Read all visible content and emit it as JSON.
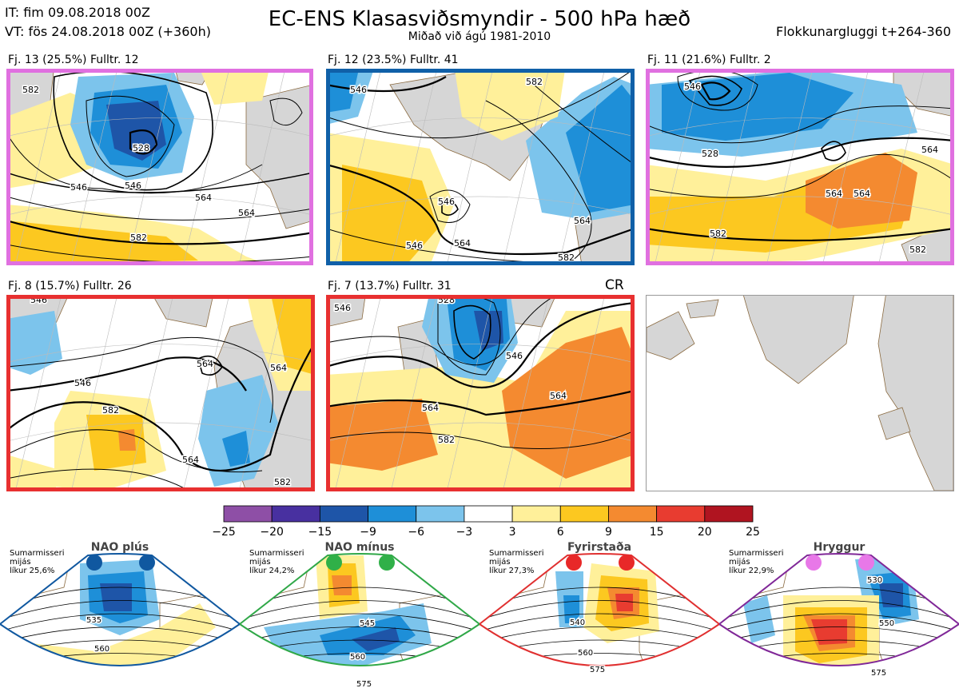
{
  "header": {
    "it_line": "IT: fim 09.08.2018 00Z",
    "vt_line": "VT: fös 24.08.2018 00Z  (+360h)",
    "title": "EC-ENS Klasasviðsmyndir - 500 hPa hæð",
    "subtitle": "Miðað við ágú 1981-2010",
    "window_label": "Flokkunargluggi t+264-360"
  },
  "cr_label": "CR",
  "chart_data": [
    {
      "type": "heatmap",
      "panel": "cluster-1",
      "label": "Fj. 13 (25.5%)   Fulltr. 12",
      "members": 13,
      "probability_pct": 25.5,
      "representative": 12,
      "frame_color": "#e070e0",
      "contour_labels": [
        "546",
        "528",
        "546",
        "564",
        "564",
        "582",
        "582"
      ]
    },
    {
      "type": "heatmap",
      "panel": "cluster-2",
      "label": "Fj. 12 (23.5%)   Fulltr. 41",
      "members": 12,
      "probability_pct": 23.5,
      "representative": 41,
      "frame_color": "#1060a8",
      "contour_labels": [
        "546",
        "546",
        "546",
        "564",
        "564",
        "582",
        "582"
      ]
    },
    {
      "type": "heatmap",
      "panel": "cluster-3",
      "label": "Fj. 11 (21.6%)   Fulltr. 2",
      "members": 11,
      "probability_pct": 21.6,
      "representative": 2,
      "frame_color": "#e070e0",
      "contour_labels": [
        "546",
        "528",
        "564",
        "582",
        "564",
        "564",
        "582"
      ]
    },
    {
      "type": "heatmap",
      "panel": "cluster-4",
      "label": "Fj. 8 (15.7%)   Fulltr. 26",
      "members": 8,
      "probability_pct": 15.7,
      "representative": 26,
      "frame_color": "#e83030",
      "contour_labels": [
        "546",
        "546",
        "564",
        "582",
        "564",
        "564",
        "582"
      ]
    },
    {
      "type": "heatmap",
      "panel": "cluster-5",
      "label": "Fj. 7 (13.7%)   Fulltr. 31",
      "members": 7,
      "probability_pct": 13.7,
      "representative": 31,
      "frame_color": "#e83030",
      "contour_labels": [
        "528",
        "546",
        "564",
        "564",
        "582",
        "546"
      ]
    },
    {
      "type": "table",
      "panel": "colorbar",
      "ticks": [
        "−25",
        "−20",
        "−15",
        "−9",
        "−6",
        "−3",
        "3",
        "6",
        "9",
        "15",
        "20",
        "25"
      ],
      "colors": [
        "#8e4fa6",
        "#4830a0",
        "#1e55a8",
        "#1e8fd8",
        "#7cc4ec",
        "#ffffff",
        "#fff09a",
        "#fcc820",
        "#f48a30",
        "#e83c30",
        "#b01420"
      ]
    },
    {
      "type": "heatmap",
      "panel": "regime-1",
      "name": "NAO plús",
      "info": [
        "Sumarmisseri",
        "mijás",
        "líkur 25,6%"
      ],
      "probability_pct": 25.6,
      "frame_color": "#1058a0",
      "dot_color": "#1058a0",
      "contour_labels": [
        "535",
        "560"
      ]
    },
    {
      "type": "heatmap",
      "panel": "regime-2",
      "name": "NAO mínus",
      "info": [
        "Sumarmisseri",
        "mijás",
        "líkur 24,2%"
      ],
      "probability_pct": 24.2,
      "frame_color": "#30a848",
      "dot_color": "#30b048",
      "contour_labels": [
        "545",
        "560",
        "575"
      ]
    },
    {
      "type": "heatmap",
      "panel": "regime-3",
      "name": "Fyrirstaða",
      "info": [
        "Sumarmisseri",
        "mijás",
        "líkur 27,3%"
      ],
      "probability_pct": 27.3,
      "frame_color": "#e03030",
      "dot_color": "#e82828",
      "contour_labels": [
        "540",
        "560",
        "575"
      ]
    },
    {
      "type": "heatmap",
      "panel": "regime-4",
      "name": "Hryggur",
      "info": [
        "Sumarmisseri",
        "mijás",
        "líkur 22,9%"
      ],
      "probability_pct": 22.9,
      "frame_color": "#802898",
      "dot_color": "#e878e8",
      "contour_labels": [
        "530",
        "550",
        "575"
      ]
    }
  ]
}
